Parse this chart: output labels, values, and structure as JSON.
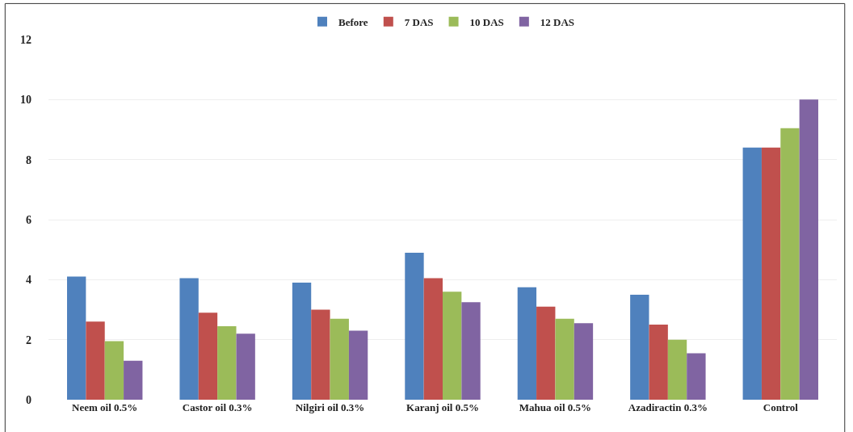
{
  "chart_data": {
    "type": "bar",
    "categories": [
      "Neem oil 0.5%",
      "Castor oil 0.3%",
      "Nilgiri oil 0.3%",
      "Karanj oil 0.5%",
      "Mahua oil 0.5%",
      "Azadiractin 0.3%",
      "Control"
    ],
    "series": [
      {
        "name": "Before",
        "color": "#4f81bd",
        "values": [
          4.1,
          4.05,
          3.9,
          4.9,
          3.75,
          3.5,
          8.4
        ]
      },
      {
        "name": "7 DAS",
        "color": "#c0504d",
        "values": [
          2.6,
          2.9,
          3.0,
          4.05,
          3.1,
          2.5,
          8.4
        ]
      },
      {
        "name": "10 DAS",
        "color": "#9bbb59",
        "values": [
          1.95,
          2.45,
          2.7,
          3.6,
          2.7,
          2.0,
          9.05
        ]
      },
      {
        "name": "12 DAS",
        "color": "#8064a2",
        "values": [
          1.3,
          2.2,
          2.3,
          3.25,
          2.55,
          1.55,
          10.0
        ]
      }
    ],
    "ylim": [
      0,
      12
    ],
    "yticks": [
      0,
      2,
      4,
      6,
      8,
      10,
      12
    ],
    "grid": "y",
    "legend": "top"
  }
}
